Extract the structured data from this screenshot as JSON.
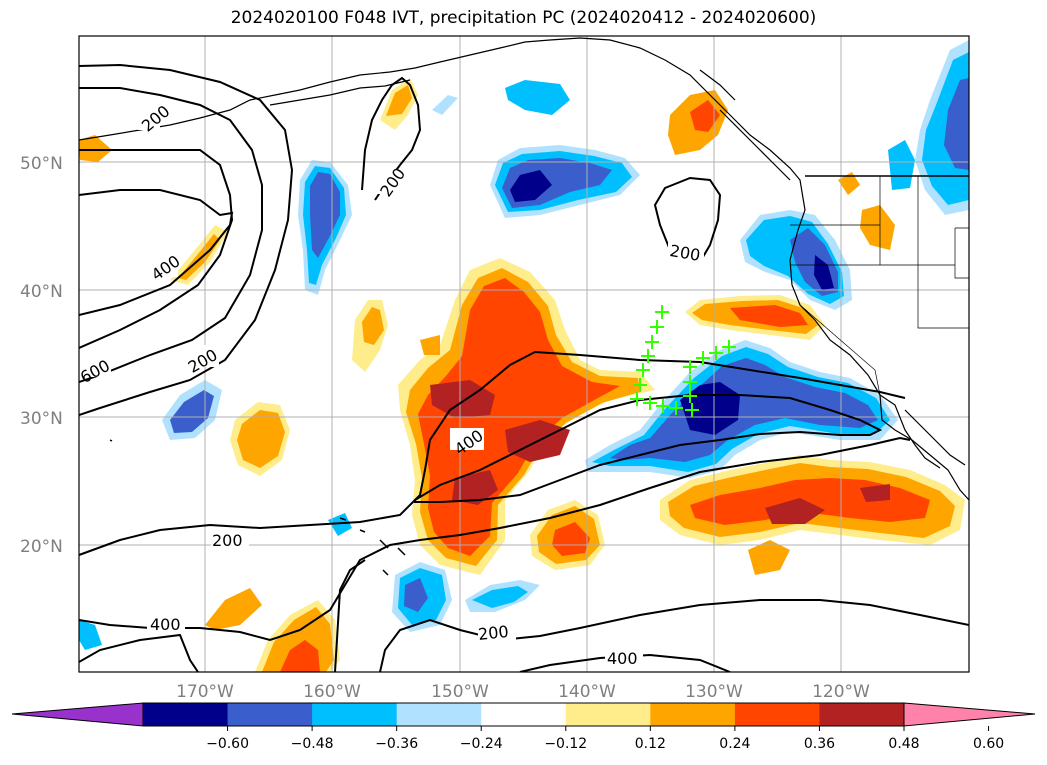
{
  "title": "2024020100 F048 IVT, precipitation PC (2024020412 - 2024020600)",
  "lon_ticks": [
    "170°W",
    "160°W",
    "150°W",
    "140°W",
    "130°W",
    "120°W"
  ],
  "lat_ticks": [
    "50°N",
    "40°N",
    "30°N",
    "20°N"
  ],
  "colorbar": {
    "labels": [
      "−0.60",
      "−0.48",
      "−0.36",
      "−0.24",
      "−0.12",
      "0.12",
      "0.24",
      "0.36",
      "0.48",
      "0.60"
    ],
    "colors": [
      "#9932cc",
      "#00008b",
      "#3a5fcd",
      "#00bfff",
      "#b0e2ff",
      "#ffffff",
      "#ffec8b",
      "#ffa500",
      "#ff4500",
      "#b22222",
      "#ff82ab"
    ]
  },
  "contour_labels": [
    "200",
    "400",
    "200",
    "600",
    "200",
    "400",
    "200",
    "400",
    "200",
    "400",
    "200"
  ],
  "colors": {
    "coast": "#000000",
    "grid": "#b0b0b0",
    "marker": "#33ff00"
  }
}
